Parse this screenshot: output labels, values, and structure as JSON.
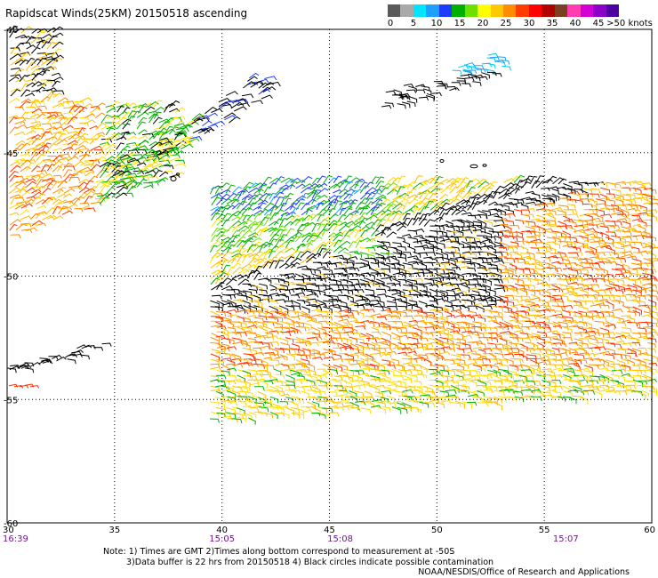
{
  "title": "Rapidscat Winds(25KM) 20150518 ascending",
  "legend": {
    "colors": [
      "#5a5a5a",
      "#a9a9a9",
      "#00e5ff",
      "#1ea0ff",
      "#1e3cff",
      "#00b000",
      "#6ee000",
      "#ffff00",
      "#ffc800",
      "#ff8c00",
      "#ff3c00",
      "#ff0000",
      "#b00000",
      "#7a4020",
      "#ff3cb0",
      "#d200d2",
      "#8c00c8",
      "#5000a0"
    ],
    "labels": [
      "0",
      "5",
      "10",
      "15",
      "20",
      "25",
      "30",
      "35",
      "40",
      "45",
      ">50 knots"
    ]
  },
  "map": {
    "lon_range": [
      30,
      60
    ],
    "lat_range": [
      -60,
      -40
    ],
    "lon_ticks": [
      "30",
      "35",
      "40",
      "45",
      "50",
      "55",
      "60"
    ],
    "lat_ticks": [
      "-40",
      "-45",
      "-50",
      "-55",
      "-60"
    ],
    "lon_grid": [
      35,
      40,
      45,
      50,
      55
    ],
    "lat_grid": [
      -45,
      -50,
      -55
    ]
  },
  "times": [
    {
      "label": "16:39",
      "lon": 30
    },
    {
      "label": "15:05",
      "lon": 40
    },
    {
      "label": "15:08",
      "lon": 45.5
    },
    {
      "label": "15:07",
      "lon": 56
    }
  ],
  "notes": [
    "Note: 1) Times are GMT 2)Times along bottom correspond to measurement at -50S",
    "3)Data buffer is 22 hrs from 20150518 4) Black circles indicate possible contamination"
  ],
  "credit": "NOAA/NESDIS/Office of Research and Applications"
}
